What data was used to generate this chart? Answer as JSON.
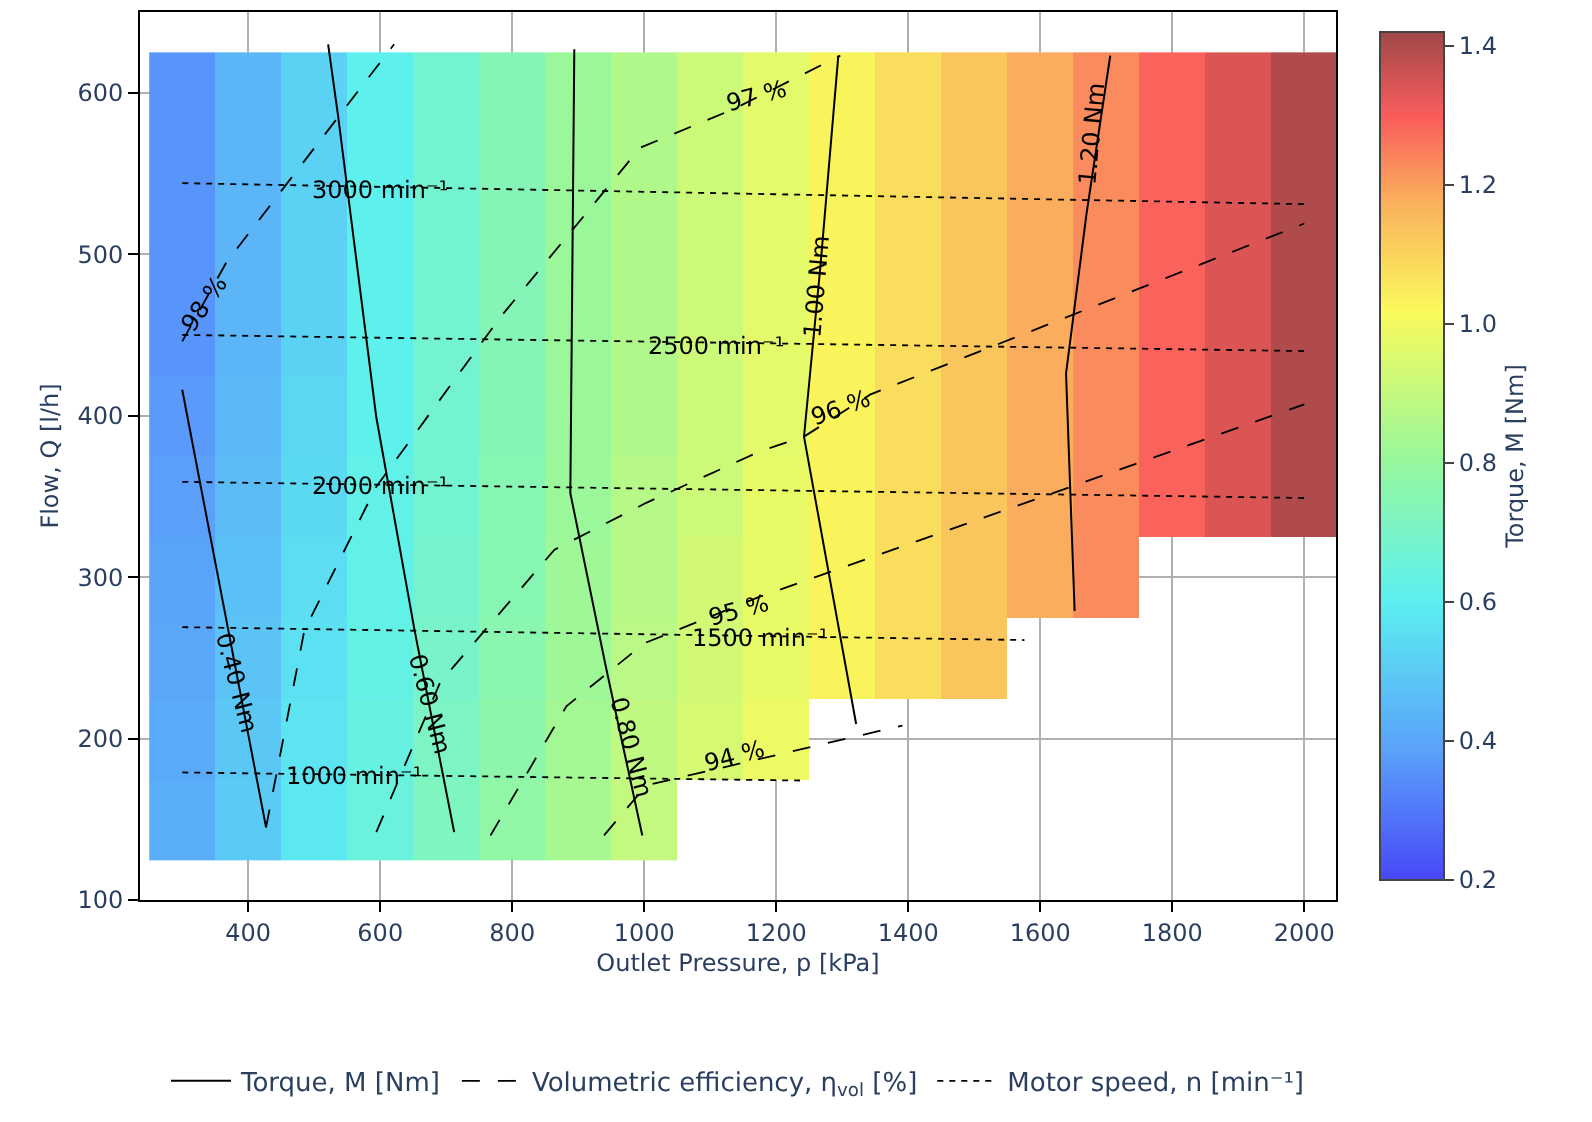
{
  "chart_data": {
    "type": "heatmap",
    "xlabel": "Outlet Pressure, p [kPa]",
    "ylabel": "Flow, Q [l/h]",
    "clabel": "Torque, M [Nm]",
    "x": [
      300,
      400,
      500,
      600,
      700,
      800,
      900,
      1000,
      1100,
      1200,
      1300,
      1400,
      1500,
      1600,
      1700,
      1800,
      1900,
      2000
    ],
    "y": [
      600,
      550,
      500,
      450,
      400,
      350,
      300,
      250,
      200,
      150
    ],
    "cells": [
      [
        0.36,
        0.44,
        0.52,
        0.61,
        0.68,
        0.74,
        0.81,
        0.86,
        0.92,
        0.97,
        1.03,
        1.08,
        1.13,
        1.18,
        1.23,
        1.29,
        1.34,
        1.4
      ],
      [
        0.36,
        0.44,
        0.52,
        0.61,
        0.68,
        0.74,
        0.81,
        0.86,
        0.92,
        0.97,
        1.03,
        1.08,
        1.13,
        1.18,
        1.23,
        1.29,
        1.34,
        1.4
      ],
      [
        0.36,
        0.44,
        0.52,
        0.61,
        0.68,
        0.74,
        0.81,
        0.86,
        0.92,
        0.97,
        1.03,
        1.08,
        1.13,
        1.18,
        1.23,
        1.29,
        1.34,
        1.4
      ],
      [
        0.36,
        0.44,
        0.52,
        0.61,
        0.68,
        0.74,
        0.81,
        0.86,
        0.92,
        0.97,
        1.03,
        1.08,
        1.13,
        1.18,
        1.23,
        1.29,
        1.34,
        1.4
      ],
      [
        0.37,
        0.45,
        0.53,
        0.61,
        0.68,
        0.74,
        0.81,
        0.86,
        0.92,
        0.97,
        1.03,
        1.08,
        1.13,
        1.18,
        1.23,
        1.29,
        1.34,
        1.4
      ],
      [
        0.38,
        0.46,
        0.54,
        0.62,
        0.68,
        0.75,
        0.81,
        0.87,
        0.92,
        0.98,
        1.03,
        1.08,
        1.13,
        1.18,
        1.23,
        1.29,
        1.34,
        1.4
      ],
      [
        0.39,
        0.47,
        0.55,
        0.62,
        0.69,
        0.75,
        0.82,
        0.87,
        0.93,
        0.98,
        1.03,
        1.08,
        1.13,
        1.18,
        1.23,
        null,
        null,
        null
      ],
      [
        0.4,
        0.48,
        0.56,
        0.63,
        0.7,
        0.76,
        0.82,
        0.88,
        0.93,
        0.98,
        1.03,
        1.08,
        1.13,
        null,
        null,
        null,
        null,
        null
      ],
      [
        0.41,
        0.49,
        0.57,
        0.64,
        0.71,
        0.77,
        0.83,
        0.89,
        0.94,
        0.99,
        null,
        null,
        null,
        null,
        null,
        null,
        null,
        null
      ],
      [
        0.42,
        0.5,
        0.58,
        0.65,
        0.72,
        0.78,
        0.84,
        0.9,
        null,
        null,
        null,
        null,
        null,
        null,
        null,
        null,
        null,
        null
      ]
    ],
    "clim": [
      0.2,
      1.42
    ],
    "cticks": [
      0.2,
      0.4,
      0.6,
      0.8,
      {
        "value": 1,
        "label": "1.0"
      },
      1.2,
      1.4
    ],
    "series": [
      {
        "name": "Torque, M [Nm]",
        "type": "line",
        "line_style": "solid",
        "color": "#000000",
        "x": [
          300,
          427
        ],
        "values": [
          416,
          145
        ]
      },
      {
        "type": "line",
        "line_style": "solid",
        "color": "#000000",
        "x": [
          521,
          536,
          594,
          652,
          712
        ],
        "values": [
          630,
          586,
          399,
          267,
          142
        ]
      },
      {
        "type": "line",
        "line_style": "solid",
        "color": "#000000",
        "x": [
          894,
          888,
          942,
          997
        ],
        "values": [
          627,
          352,
          244,
          140
        ]
      },
      {
        "type": "line",
        "line_style": "solid",
        "color": "#000000",
        "x": [
          1294,
          1267,
          1242,
          1321
        ],
        "values": [
          623,
          493,
          387,
          209
        ]
      },
      {
        "type": "line",
        "line_style": "solid",
        "color": "#000000",
        "x": [
          1706,
          1670,
          1639,
          1652
        ],
        "values": [
          623,
          525,
          426,
          279
        ]
      },
      {
        "name": "Volumetric efficiency, η$_{vol}$ [%]",
        "type": "line",
        "line_style": "dashed",
        "color": "#000000",
        "x": [
          300,
          367,
          621
        ],
        "values": [
          446,
          495,
          630
        ]
      },
      {
        "type": "line",
        "line_style": "dashed",
        "color": "#000000",
        "x": [
          427,
          485,
          594,
          782,
          994,
          1136,
          1297
        ],
        "values": [
          145,
          267,
          356,
          461,
          566,
          590,
          623
        ]
      },
      {
        "type": "line",
        "line_style": "dashed",
        "color": "#000000",
        "x": [
          594,
          691,
          864,
          1003,
          1176,
          1242,
          1342,
          2000
        ],
        "values": [
          142,
          235,
          317,
          346,
          378,
          387,
          413,
          519
        ]
      },
      {
        "type": "line",
        "line_style": "dashed",
        "color": "#000000",
        "x": [
          767,
          882,
          1000,
          1176,
          2000
        ],
        "values": [
          140,
          220,
          259,
          288,
          407
        ]
      },
      {
        "type": "line",
        "line_style": "dashed",
        "color": "#000000",
        "x": [
          939,
          1003,
          1391
        ],
        "values": [
          140,
          171,
          208
        ]
      },
      {
        "name": "Motor speed, n [min⁻¹]",
        "type": "line",
        "line_style": "dotted",
        "color": "#000000",
        "x": [
          300,
          2000
        ],
        "values": [
          544,
          531
        ]
      },
      {
        "type": "line",
        "line_style": "dotted",
        "color": "#000000",
        "x": [
          300,
          2000
        ],
        "values": [
          450,
          440
        ]
      },
      {
        "type": "line",
        "line_style": "dotted",
        "color": "#000000",
        "x": [
          300,
          2000
        ],
        "values": [
          359,
          349
        ]
      },
      {
        "type": "line",
        "line_style": "dotted",
        "color": "#000000",
        "x": [
          300,
          1576
        ],
        "values": [
          269,
          261
        ]
      },
      {
        "type": "line",
        "line_style": "dotted",
        "color": "#000000",
        "x": [
          300,
          1236
        ],
        "values": [
          179,
          174
        ]
      }
    ],
    "annotations": [
      {
        "text": "0.40 Nm",
        "x": 382,
        "y": 235
      },
      {
        "text": "0.60 Nm",
        "x": 676,
        "y": 222
      },
      {
        "text": "0.80 Nm",
        "x": 979,
        "y": 195
      },
      {
        "text": "1.00 Nm",
        "x": 1262,
        "y": 480
      },
      {
        "text": "1.20 Nm",
        "x": 1679,
        "y": 574
      },
      {
        "text": "98 %",
        "x": 333,
        "y": 469
      },
      {
        "text": "97 %",
        "x": 1170,
        "y": 598
      },
      {
        "text": "96 %",
        "x": 1297,
        "y": 405
      },
      {
        "text": "95 %",
        "x": 1145,
        "y": 280
      },
      {
        "text": "94 %",
        "x": 1136,
        "y": 189
      },
      {
        "text": "3000 min⁻¹",
        "x": 600,
        "y": 540
      },
      {
        "text": "2500 min⁻¹",
        "x": 1110,
        "y": 443
      },
      {
        "text": "2000 min⁻¹",
        "x": 600,
        "y": 357
      },
      {
        "text": "1500 min⁻¹",
        "x": 1176,
        "y": 262
      },
      {
        "text": "1000 min⁻¹",
        "x": 560,
        "y": 177
      }
    ],
    "xlim": [
      236,
      2048
    ],
    "ylim": [
      100,
      650
    ],
    "xticks": [
      400,
      600,
      800,
      1000,
      1200,
      1400,
      1600,
      1800,
      2000
    ],
    "yticks": [
      100,
      200,
      300,
      400,
      500,
      600
    ],
    "grid": true,
    "legend": "bottom"
  }
}
